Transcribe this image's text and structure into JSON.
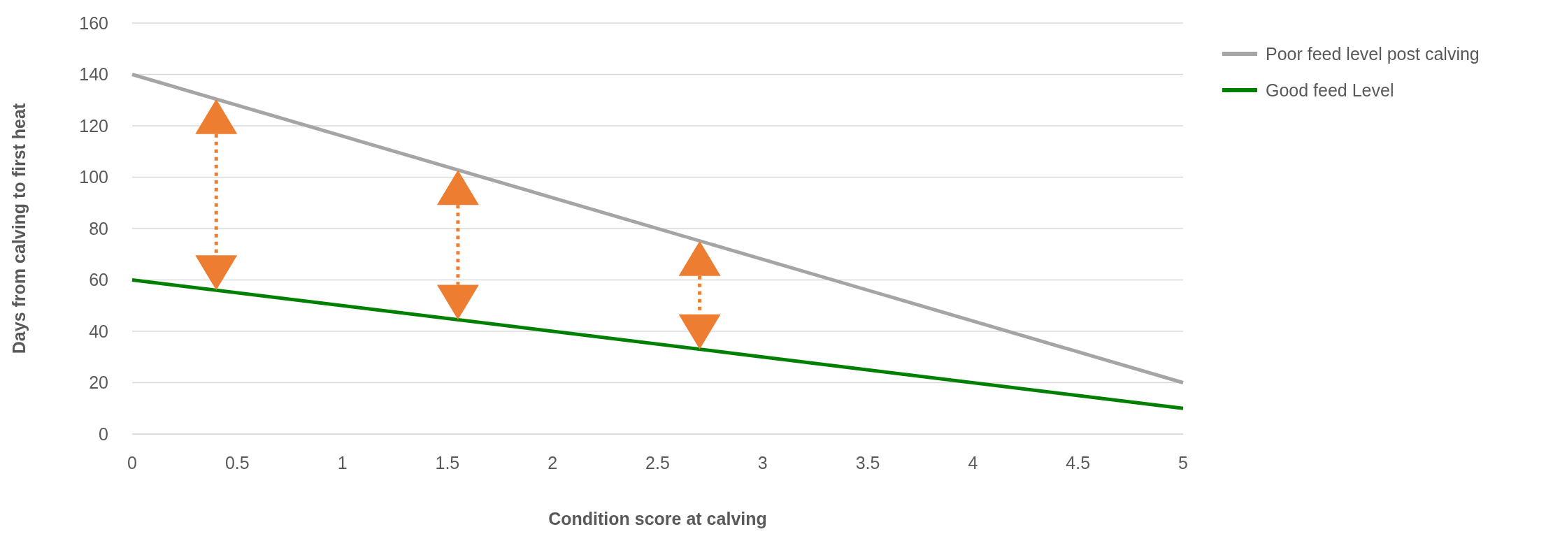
{
  "chart_data": {
    "type": "line",
    "xlabel": "Condition score at calving",
    "ylabel": "Days from calving to first heat",
    "x": [
      0,
      5
    ],
    "series": [
      {
        "name": "Poor feed level post calving",
        "color": "#a5a5a5",
        "values": [
          140,
          20
        ]
      },
      {
        "name": "Good feed Level",
        "color": "#008000",
        "values": [
          60,
          10
        ]
      }
    ],
    "xlim": [
      0,
      5
    ],
    "xticks": [
      0,
      0.5,
      1,
      1.5,
      2,
      2.5,
      3,
      3.5,
      4,
      4.5,
      5
    ],
    "ylim": [
      0,
      160
    ],
    "yticks": [
      0,
      20,
      40,
      60,
      80,
      100,
      120,
      140,
      160
    ],
    "grid": "y",
    "legend": "right",
    "marker": "none",
    "line_style": "solid"
  }
}
